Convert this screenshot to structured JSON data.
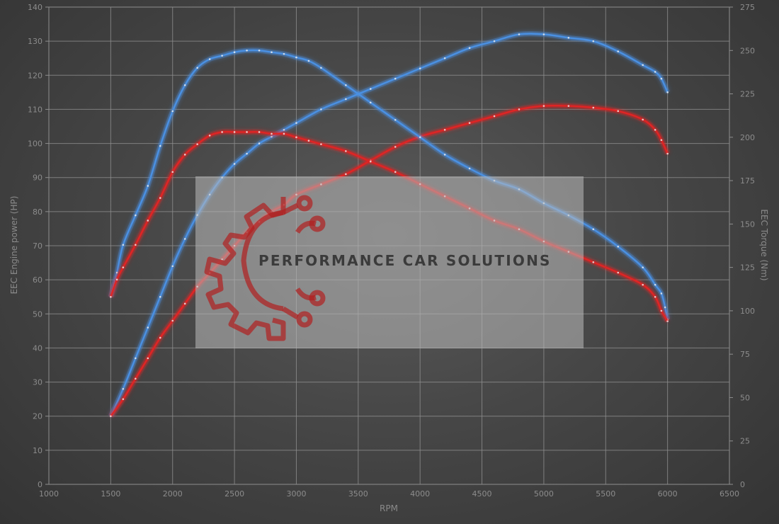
{
  "chart_data": {
    "type": "line",
    "xlabel": "RPM",
    "ylabel_left": "EEC Engine power (HP)",
    "ylabel_right": "EEC Torque (Nm)",
    "xlim": [
      1000,
      6500
    ],
    "x_ticks": [
      1000,
      1500,
      2000,
      2500,
      3000,
      3500,
      4000,
      4500,
      5000,
      5500,
      6000,
      6500
    ],
    "ylim_left": [
      0,
      140
    ],
    "y_ticks_left": [
      0,
      10,
      20,
      30,
      40,
      50,
      60,
      70,
      80,
      90,
      100,
      110,
      120,
      130,
      140
    ],
    "ylim_right": [
      0,
      275
    ],
    "y_ticks_right": [
      0,
      25,
      50,
      75,
      100,
      125,
      150,
      175,
      200,
      225,
      250,
      275
    ],
    "grid": true,
    "series": [
      {
        "color": "#4a90e2",
        "axis": "left",
        "measure": "power",
        "x": [
          1500,
          1600,
          1700,
          1800,
          1900,
          2000,
          2100,
          2200,
          2300,
          2400,
          2500,
          2600,
          2700,
          2800,
          2900,
          3000,
          3200,
          3400,
          3600,
          3800,
          4000,
          4200,
          4400,
          4600,
          4800,
          5000,
          5200,
          5400,
          5600,
          5800,
          5900,
          5950,
          6000
        ],
        "y": [
          20,
          28,
          37,
          46,
          55,
          64,
          72,
          79,
          85,
          90,
          94,
          97,
          100,
          102,
          104,
          106,
          110,
          113,
          116,
          119,
          122,
          125,
          128,
          130,
          132,
          132,
          131,
          130,
          127,
          123,
          121,
          119,
          115
        ]
      },
      {
        "color": "#e02424",
        "axis": "left",
        "measure": "power",
        "x": [
          1500,
          1600,
          1700,
          1800,
          1900,
          2000,
          2100,
          2200,
          2300,
          2400,
          2500,
          2600,
          2700,
          2800,
          2900,
          3000,
          3200,
          3400,
          3600,
          3800,
          4000,
          4200,
          4400,
          4600,
          4800,
          5000,
          5200,
          5400,
          5600,
          5800,
          5900,
          5950,
          6000
        ],
        "y": [
          20,
          25,
          31,
          37,
          43,
          48,
          53,
          58,
          62,
          66,
          70,
          74,
          77,
          80,
          82,
          85,
          88,
          91,
          95,
          99,
          102,
          104,
          106,
          108,
          110,
          111,
          111,
          110.5,
          109.5,
          107,
          104,
          101,
          97
        ]
      },
      {
        "color": "#4a90e2",
        "axis": "right",
        "measure": "torque",
        "x": [
          1500,
          1550,
          1600,
          1700,
          1800,
          1900,
          2000,
          2100,
          2200,
          2300,
          2400,
          2500,
          2600,
          2700,
          2800,
          2900,
          3000,
          3100,
          3200,
          3400,
          3600,
          3800,
          4000,
          4200,
          4400,
          4600,
          4800,
          5000,
          5200,
          5400,
          5600,
          5800,
          5900,
          5950,
          5980,
          6000
        ],
        "y": [
          108,
          122,
          138,
          155,
          172,
          195,
          215,
          230,
          240,
          245,
          247,
          249,
          250,
          250,
          249,
          248,
          246,
          244,
          240,
          230,
          220,
          210,
          200,
          190,
          182,
          175,
          170,
          162,
          155,
          147,
          137,
          125,
          115,
          110,
          102,
          95
        ]
      },
      {
        "color": "#e02424",
        "axis": "right",
        "measure": "torque",
        "x": [
          1500,
          1550,
          1600,
          1700,
          1800,
          1900,
          2000,
          2100,
          2200,
          2300,
          2400,
          2500,
          2600,
          2700,
          2800,
          2900,
          3000,
          3100,
          3200,
          3400,
          3600,
          3800,
          4000,
          4200,
          4400,
          4600,
          4800,
          5000,
          5200,
          5400,
          5600,
          5800,
          5900,
          5950,
          6000
        ],
        "y": [
          108,
          118,
          125,
          138,
          152,
          165,
          180,
          190,
          196,
          201,
          203,
          203,
          203,
          203,
          202,
          202,
          200,
          198,
          196,
          192,
          186,
          180,
          173,
          166,
          159,
          152,
          147,
          140,
          134,
          128,
          122,
          115,
          108,
          100,
          94
        ]
      }
    ]
  },
  "watermark": {
    "brand_text": "PERFORMANCE CAR SOLUTIONS"
  },
  "colors": {
    "power_tuned": "#4a90e2",
    "stock": "#e02424",
    "plot_background": "#4b4b4b"
  }
}
